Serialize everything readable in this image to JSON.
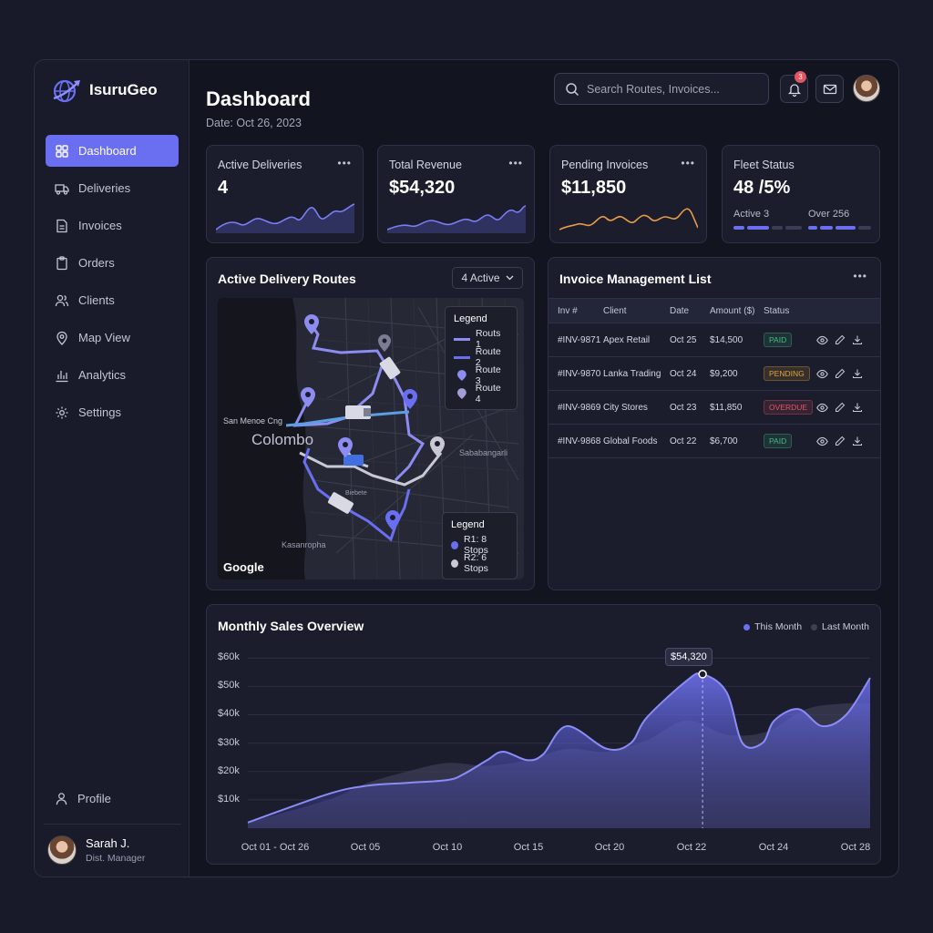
{
  "brand": {
    "name": "IsuruGeo"
  },
  "sidebar": {
    "items": [
      {
        "label": "Dashboard",
        "icon": "grid-icon"
      },
      {
        "label": "Deliveries",
        "icon": "truck-icon"
      },
      {
        "label": "Invoices",
        "icon": "document-icon"
      },
      {
        "label": "Orders",
        "icon": "clipboard-icon"
      },
      {
        "label": "Clients",
        "icon": "users-icon"
      },
      {
        "label": "Map View",
        "icon": "map-pin-icon"
      },
      {
        "label": "Analytics",
        "icon": "bar-chart-icon"
      },
      {
        "label": "Settings",
        "icon": "gear-icon"
      }
    ],
    "active_index": 0,
    "profile_label": "Profile",
    "user": {
      "name": "Sarah J.",
      "role": "Dist. Manager"
    }
  },
  "header": {
    "title": "Dashboard",
    "date": "Date: Oct 26, 2023",
    "search_placeholder": "Search Routes, Invoices...",
    "notification_count": "3"
  },
  "stats": {
    "active_deliveries": {
      "label": "Active Deliveries",
      "value": "4"
    },
    "total_revenue": {
      "label": "Total Revenue",
      "value": "$54,320"
    },
    "pending_invoices": {
      "label": "Pending Invoices",
      "value": "$11,850"
    },
    "fleet": {
      "label": "Fleet Status",
      "value": "48 /5%",
      "sub_left": "Active 3",
      "sub_right": "Over 256"
    }
  },
  "routes": {
    "title": "Active Delivery Routes",
    "filter": "4 Active",
    "map_labels": {
      "city": "Colombo",
      "area_1": "San Menoe Cng",
      "area_2": "Sababangarli",
      "area_3": "Kasanrophа",
      "area_4": "Biebete",
      "attribution": "Google"
    },
    "legend_top": {
      "title": "Legend",
      "items": [
        "Routs 1",
        "Route 2",
        "Route 3",
        "Route 4"
      ]
    },
    "legend_bottom": {
      "title": "Legend",
      "items": [
        "R1: 8 Stops",
        "R2: 6 Stops"
      ]
    }
  },
  "invoices": {
    "title": "Invoice Management List",
    "columns": [
      "Inv #",
      "Client",
      "Date",
      "Amount ($)",
      "Status"
    ],
    "rows": [
      {
        "inv": "#INV-9871",
        "client": "Apex Retail",
        "date": "Oct 25",
        "amount": "$14,500",
        "status": "PAID"
      },
      {
        "inv": "#INV-9870",
        "client": "Lanka Trading",
        "date": "Oct 24",
        "amount": "$9,200",
        "status": "PENDING"
      },
      {
        "inv": "#INV-9869",
        "client": "City Stores",
        "date": "Oct 23",
        "amount": "$11,850",
        "status": "OVERDUE"
      },
      {
        "inv": "#INV-9868",
        "client": "Global Foods",
        "date": "Oct 22",
        "amount": "$6,700",
        "status": "PAID"
      }
    ]
  },
  "status_colors": {
    "PAID": "#3fbf7f",
    "PENDING": "#e0a336",
    "OVERDUE": "#e35464"
  },
  "chart_data": {
    "type": "area",
    "title": "Monthly Sales Overview",
    "categories": [
      "Oct 01 - Oct 26",
      "Oct 05",
      "Oct 10",
      "Oct 15",
      "Oct 20",
      "Oct 22",
      "Oct 24",
      "Oct 28"
    ],
    "yticks": [
      "$60k",
      "$50k",
      "$40k",
      "$30k",
      "$20k",
      "$10k"
    ],
    "ylim": [
      0,
      62000
    ],
    "legend_placement": "top-right",
    "series": [
      {
        "name": "This Month",
        "color": "#6c6ff2",
        "x": [
          0,
          2,
          3,
          4,
          5,
          5.4,
          6,
          6.4,
          7,
          7.4,
          8,
          9,
          9.6,
          10,
          11,
          11.4,
          12,
          12.4,
          12.9,
          13.2,
          13.8,
          14.4,
          15,
          15.6
        ],
        "y": [
          2000,
          12000,
          15000,
          16000,
          17000,
          19000,
          24000,
          27000,
          24000,
          26000,
          36000,
          28000,
          30000,
          39000,
          52000,
          54320,
          48000,
          30000,
          30000,
          38000,
          42000,
          36000,
          40000,
          53000
        ]
      },
      {
        "name": "Last Month",
        "color": "#3d3f57",
        "x": [
          0,
          2,
          3,
          4,
          5,
          6,
          7,
          8,
          9,
          10,
          11,
          12,
          13,
          14,
          15,
          15.6
        ],
        "y": [
          2000,
          10000,
          16000,
          20000,
          23000,
          22000,
          24000,
          28000,
          27000,
          31000,
          38000,
          33000,
          34000,
          42000,
          44000,
          44000
        ]
      }
    ],
    "tooltip": {
      "label": "$54,320",
      "x": 11.4,
      "y": 54320
    }
  }
}
